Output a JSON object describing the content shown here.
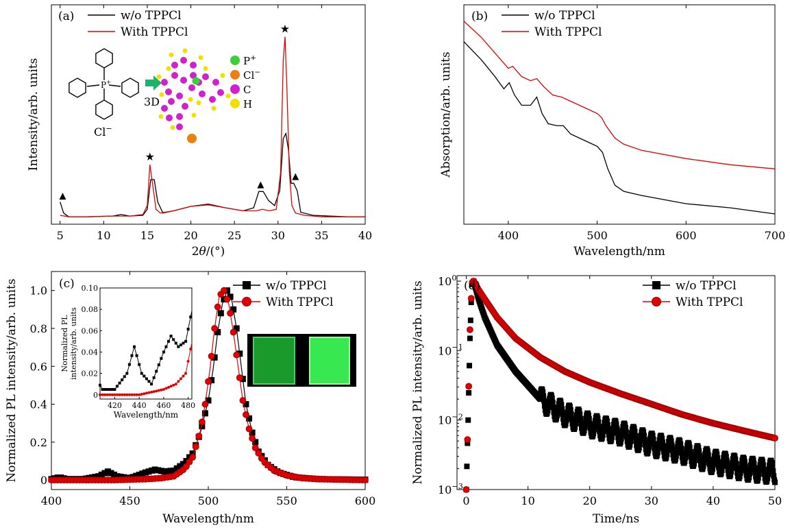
{
  "chart_data": [
    {
      "panel": "(a)",
      "type": "line",
      "xlabel_prefix": "2",
      "xlabel_symbol": "θ",
      "xlabel_suffix": "/(°)",
      "ylabel": "Intensity/arb. units",
      "xlim": [
        4,
        40
      ],
      "xticks": [
        5,
        10,
        15,
        20,
        25,
        30,
        35,
        40
      ],
      "yticks": [],
      "legend": "top-left",
      "series": [
        {
          "name": "w/o TPPCl",
          "color": "#000000",
          "x": [
            5,
            5.4,
            6,
            8,
            11,
            12,
            13,
            14.5,
            15,
            15.4,
            15.8,
            16.2,
            16.8,
            18,
            20,
            22,
            24,
            26,
            27.2,
            27.8,
            28.3,
            28.9,
            29.6,
            30.2,
            30.6,
            30.9,
            31.2,
            31.5,
            31.8,
            32.2,
            32.6,
            34,
            36,
            38,
            40
          ],
          "y": [
            0.2,
            0.05,
            0.0,
            0.0,
            0.01,
            0.03,
            0.01,
            0.02,
            0.1,
            0.5,
            0.5,
            0.2,
            0.05,
            0.08,
            0.14,
            0.17,
            0.12,
            0.08,
            0.12,
            0.34,
            0.34,
            0.22,
            0.15,
            0.35,
            1.05,
            1.12,
            0.9,
            0.45,
            0.45,
            0.35,
            0.06,
            0.02,
            0.01,
            0.0,
            0.0
          ]
        },
        {
          "name": "With TPPCl",
          "color": "#e00000",
          "x": [
            5,
            6,
            8,
            11,
            13,
            14.5,
            15,
            15.3,
            15.6,
            16.0,
            16.5,
            18,
            20,
            22,
            24,
            26,
            27.5,
            28.2,
            29,
            29.8,
            30.3,
            30.6,
            30.8,
            31.0,
            31.3,
            31.6,
            32.0,
            33,
            35,
            38,
            40
          ],
          "y": [
            0.02,
            0.0,
            0.0,
            0.01,
            0.01,
            0.03,
            0.15,
            0.7,
            0.45,
            0.1,
            0.05,
            0.08,
            0.14,
            0.16,
            0.12,
            0.08,
            0.08,
            0.1,
            0.08,
            0.1,
            0.6,
            2.1,
            2.42,
            1.8,
            0.6,
            0.15,
            0.05,
            0.02,
            0.0,
            0.0,
            0.0
          ]
        }
      ],
      "annotations": {
        "stars_at": [
          [
            15.3,
            0.72
          ],
          [
            30.8,
            2.44
          ]
        ],
        "triangles_at": [
          [
            5.3,
            0.21
          ],
          [
            28.0,
            0.36
          ],
          [
            32.0,
            0.47
          ]
        ],
        "inset_labels": [
          "P",
          "+",
          "Cl",
          "−",
          "C",
          "H",
          "3D",
          "Cl",
          "−",
          "P",
          "+"
        ]
      }
    },
    {
      "panel": "(b)",
      "type": "line",
      "xlabel": "Wavelength/nm",
      "ylabel": "Absorption/arb. units",
      "xlim": [
        350,
        700
      ],
      "xticks": [
        400,
        500,
        600,
        700
      ],
      "yticks": [],
      "legend": "top-left",
      "series": [
        {
          "name": "w/o TPPCl",
          "color": "#000000",
          "x": [
            350,
            370,
            385,
            395,
            401,
            407,
            415,
            425,
            432,
            438,
            445,
            455,
            462,
            470,
            480,
            490,
            500,
            506,
            512,
            520,
            530,
            550,
            600,
            650,
            700
          ],
          "y": [
            0.84,
            0.75,
            0.67,
            0.61,
            0.64,
            0.58,
            0.53,
            0.53,
            0.57,
            0.49,
            0.44,
            0.43,
            0.43,
            0.39,
            0.37,
            0.35,
            0.33,
            0.3,
            0.22,
            0.14,
            0.11,
            0.09,
            0.05,
            0.03,
            0.0
          ]
        },
        {
          "name": "With TPPCl",
          "color": "#e00000",
          "x": [
            350,
            370,
            390,
            400,
            405,
            415,
            425,
            432,
            440,
            450,
            460,
            470,
            480,
            490,
            500,
            505,
            510,
            520,
            530,
            550,
            600,
            650,
            700
          ],
          "y": [
            0.94,
            0.86,
            0.76,
            0.71,
            0.72,
            0.67,
            0.65,
            0.66,
            0.62,
            0.58,
            0.57,
            0.55,
            0.53,
            0.51,
            0.49,
            0.47,
            0.43,
            0.37,
            0.34,
            0.31,
            0.27,
            0.24,
            0.22
          ]
        }
      ]
    },
    {
      "panel": "(c)",
      "type": "line",
      "xlabel": "Wavelength/nm",
      "ylabel": "Normalized PL intensity/arb. units",
      "xlim": [
        400,
        600
      ],
      "ylim": [
        -0.05,
        1.1
      ],
      "xticks": [
        400,
        450,
        500,
        550,
        600
      ],
      "yticks": [
        0,
        0.2,
        0.4,
        0.6,
        0.8,
        1.0
      ],
      "ytick_labels": [
        "0",
        "0.2",
        "0.4",
        "0.6",
        "0.8",
        "1.0"
      ],
      "legend": "top-right",
      "series": [
        {
          "name": "w/o TPPCl",
          "color": "#000000",
          "marker": "square",
          "x": [
            400,
            405,
            410,
            420,
            430,
            436,
            442,
            450,
            460,
            466,
            472,
            478,
            485,
            490,
            495,
            500,
            503,
            506,
            509,
            512,
            515,
            518,
            521,
            524,
            528,
            532,
            538,
            545,
            555,
            570,
            600
          ],
          "y": [
            0.005,
            0.015,
            0.005,
            0.005,
            0.02,
            0.045,
            0.02,
            0.01,
            0.04,
            0.055,
            0.045,
            0.05,
            0.09,
            0.14,
            0.25,
            0.42,
            0.58,
            0.78,
            0.93,
            1.0,
            0.95,
            0.8,
            0.6,
            0.4,
            0.25,
            0.15,
            0.08,
            0.04,
            0.015,
            0.005,
            0.002
          ]
        },
        {
          "name": "With TPPCl",
          "color": "#e00000",
          "marker": "circle",
          "x": [
            400,
            420,
            440,
            460,
            470,
            478,
            485,
            490,
            495,
            498,
            501,
            504,
            507,
            510,
            513,
            516,
            519,
            522,
            526,
            530,
            535,
            542,
            550,
            560,
            575,
            600
          ],
          "y": [
            0.0,
            0.0,
            0.0,
            0.005,
            0.01,
            0.02,
            0.06,
            0.12,
            0.26,
            0.4,
            0.58,
            0.8,
            0.97,
            1.0,
            0.93,
            0.78,
            0.6,
            0.42,
            0.27,
            0.17,
            0.1,
            0.05,
            0.025,
            0.01,
            0.004,
            0.0
          ]
        }
      ],
      "inset": {
        "xlabel": "Wavelength/nm",
        "ylabel_line1": "Normalized PL",
        "ylabel_line2": "intensity/arb. units",
        "xlim": [
          408,
          483
        ],
        "ylim": [
          -0.004,
          0.1
        ],
        "xticks": [
          420,
          440,
          460,
          480
        ],
        "yticks": [
          0,
          0.02,
          0.04,
          0.06,
          0.08,
          0.1
        ],
        "ytick_labels": [
          "0",
          "0.02",
          "0.04",
          "0.06",
          "0.08",
          "0.10"
        ]
      }
    },
    {
      "panel": "(d)",
      "type": "scatter",
      "xlabel": "Time/ns",
      "ylabel": "Normalized PL intensity/arb. units",
      "xlim": [
        -1.5,
        50
      ],
      "ylim": [
        0.001,
        1.2
      ],
      "yscale": "log",
      "xticks": [
        0,
        10,
        20,
        30,
        40,
        50
      ],
      "yticks": [
        0.001,
        0.01,
        0.1,
        1
      ],
      "ytick_labels": [
        [
          "10",
          "−3"
        ],
        [
          "10",
          "−2"
        ],
        [
          "10",
          "−1"
        ],
        [
          "10",
          "0"
        ]
      ],
      "legend": "top-right",
      "series": [
        {
          "name": "w/o TPPCl",
          "color": "#000000",
          "marker": "square",
          "x": [
            0,
            0.3,
            0.6,
            0.9,
            1.2,
            2,
            3,
            5,
            8,
            12,
            16,
            20,
            25,
            30,
            35,
            40,
            45,
            50
          ],
          "y": [
            0.001,
            0.01,
            0.15,
            0.9,
            1.0,
            0.55,
            0.3,
            0.12,
            0.05,
            0.02,
            0.012,
            0.0085,
            0.0065,
            0.0045,
            0.0035,
            0.0025,
            0.002,
            0.0018
          ]
        },
        {
          "name": "With TPPCl",
          "color": "#e00000",
          "marker": "circle",
          "x": [
            0,
            0.3,
            0.6,
            0.9,
            1.2,
            2,
            3,
            5,
            8,
            12,
            16,
            20,
            25,
            30,
            35,
            40,
            45,
            50
          ],
          "y": [
            0.001,
            0.012,
            0.2,
            0.95,
            1.0,
            0.75,
            0.55,
            0.3,
            0.15,
            0.08,
            0.05,
            0.035,
            0.024,
            0.017,
            0.012,
            0.009,
            0.007,
            0.0055
          ]
        }
      ]
    }
  ]
}
